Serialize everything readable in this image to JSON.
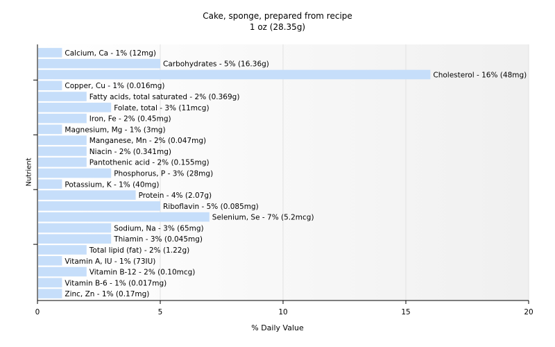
{
  "chart_data": {
    "type": "bar",
    "orientation": "horizontal",
    "title": "Cake, sponge, prepared from recipe",
    "subtitle": "1 oz (28.35g)",
    "xlabel": "% Daily Value",
    "ylabel": "Nutrient",
    "xlim": [
      0,
      20
    ],
    "xticks": [
      0,
      5,
      10,
      15,
      20
    ],
    "grid": "vertical",
    "bar_color": "#c6defa",
    "categories": [
      "Calcium, Ca - 1% (12mg)",
      "Carbohydrates - 5% (16.36g)",
      "Cholesterol - 16% (48mg)",
      "Copper, Cu - 1% (0.016mg)",
      "Fatty acids, total saturated - 2% (0.369g)",
      "Folate, total - 3% (11mcg)",
      "Iron, Fe - 2% (0.45mg)",
      "Magnesium, Mg - 1% (3mg)",
      "Manganese, Mn - 2% (0.047mg)",
      "Niacin - 2% (0.341mg)",
      "Pantothenic acid - 2% (0.155mg)",
      "Phosphorus, P - 3% (28mg)",
      "Potassium, K - 1% (40mg)",
      "Protein - 4% (2.07g)",
      "Riboflavin - 5% (0.085mg)",
      "Selenium, Se - 7% (5.2mcg)",
      "Sodium, Na - 3% (65mg)",
      "Thiamin - 3% (0.045mg)",
      "Total lipid (fat) - 2% (1.22g)",
      "Vitamin A, IU - 1% (73IU)",
      "Vitamin B-12 - 2% (0.10mcg)",
      "Vitamin B-6 - 1% (0.017mg)",
      "Zinc, Zn - 1% (0.17mg)"
    ],
    "values": [
      1,
      5,
      16,
      1,
      2,
      3,
      2,
      1,
      2,
      2,
      2,
      3,
      1,
      4,
      5,
      7,
      3,
      3,
      2,
      1,
      2,
      1,
      1
    ]
  }
}
